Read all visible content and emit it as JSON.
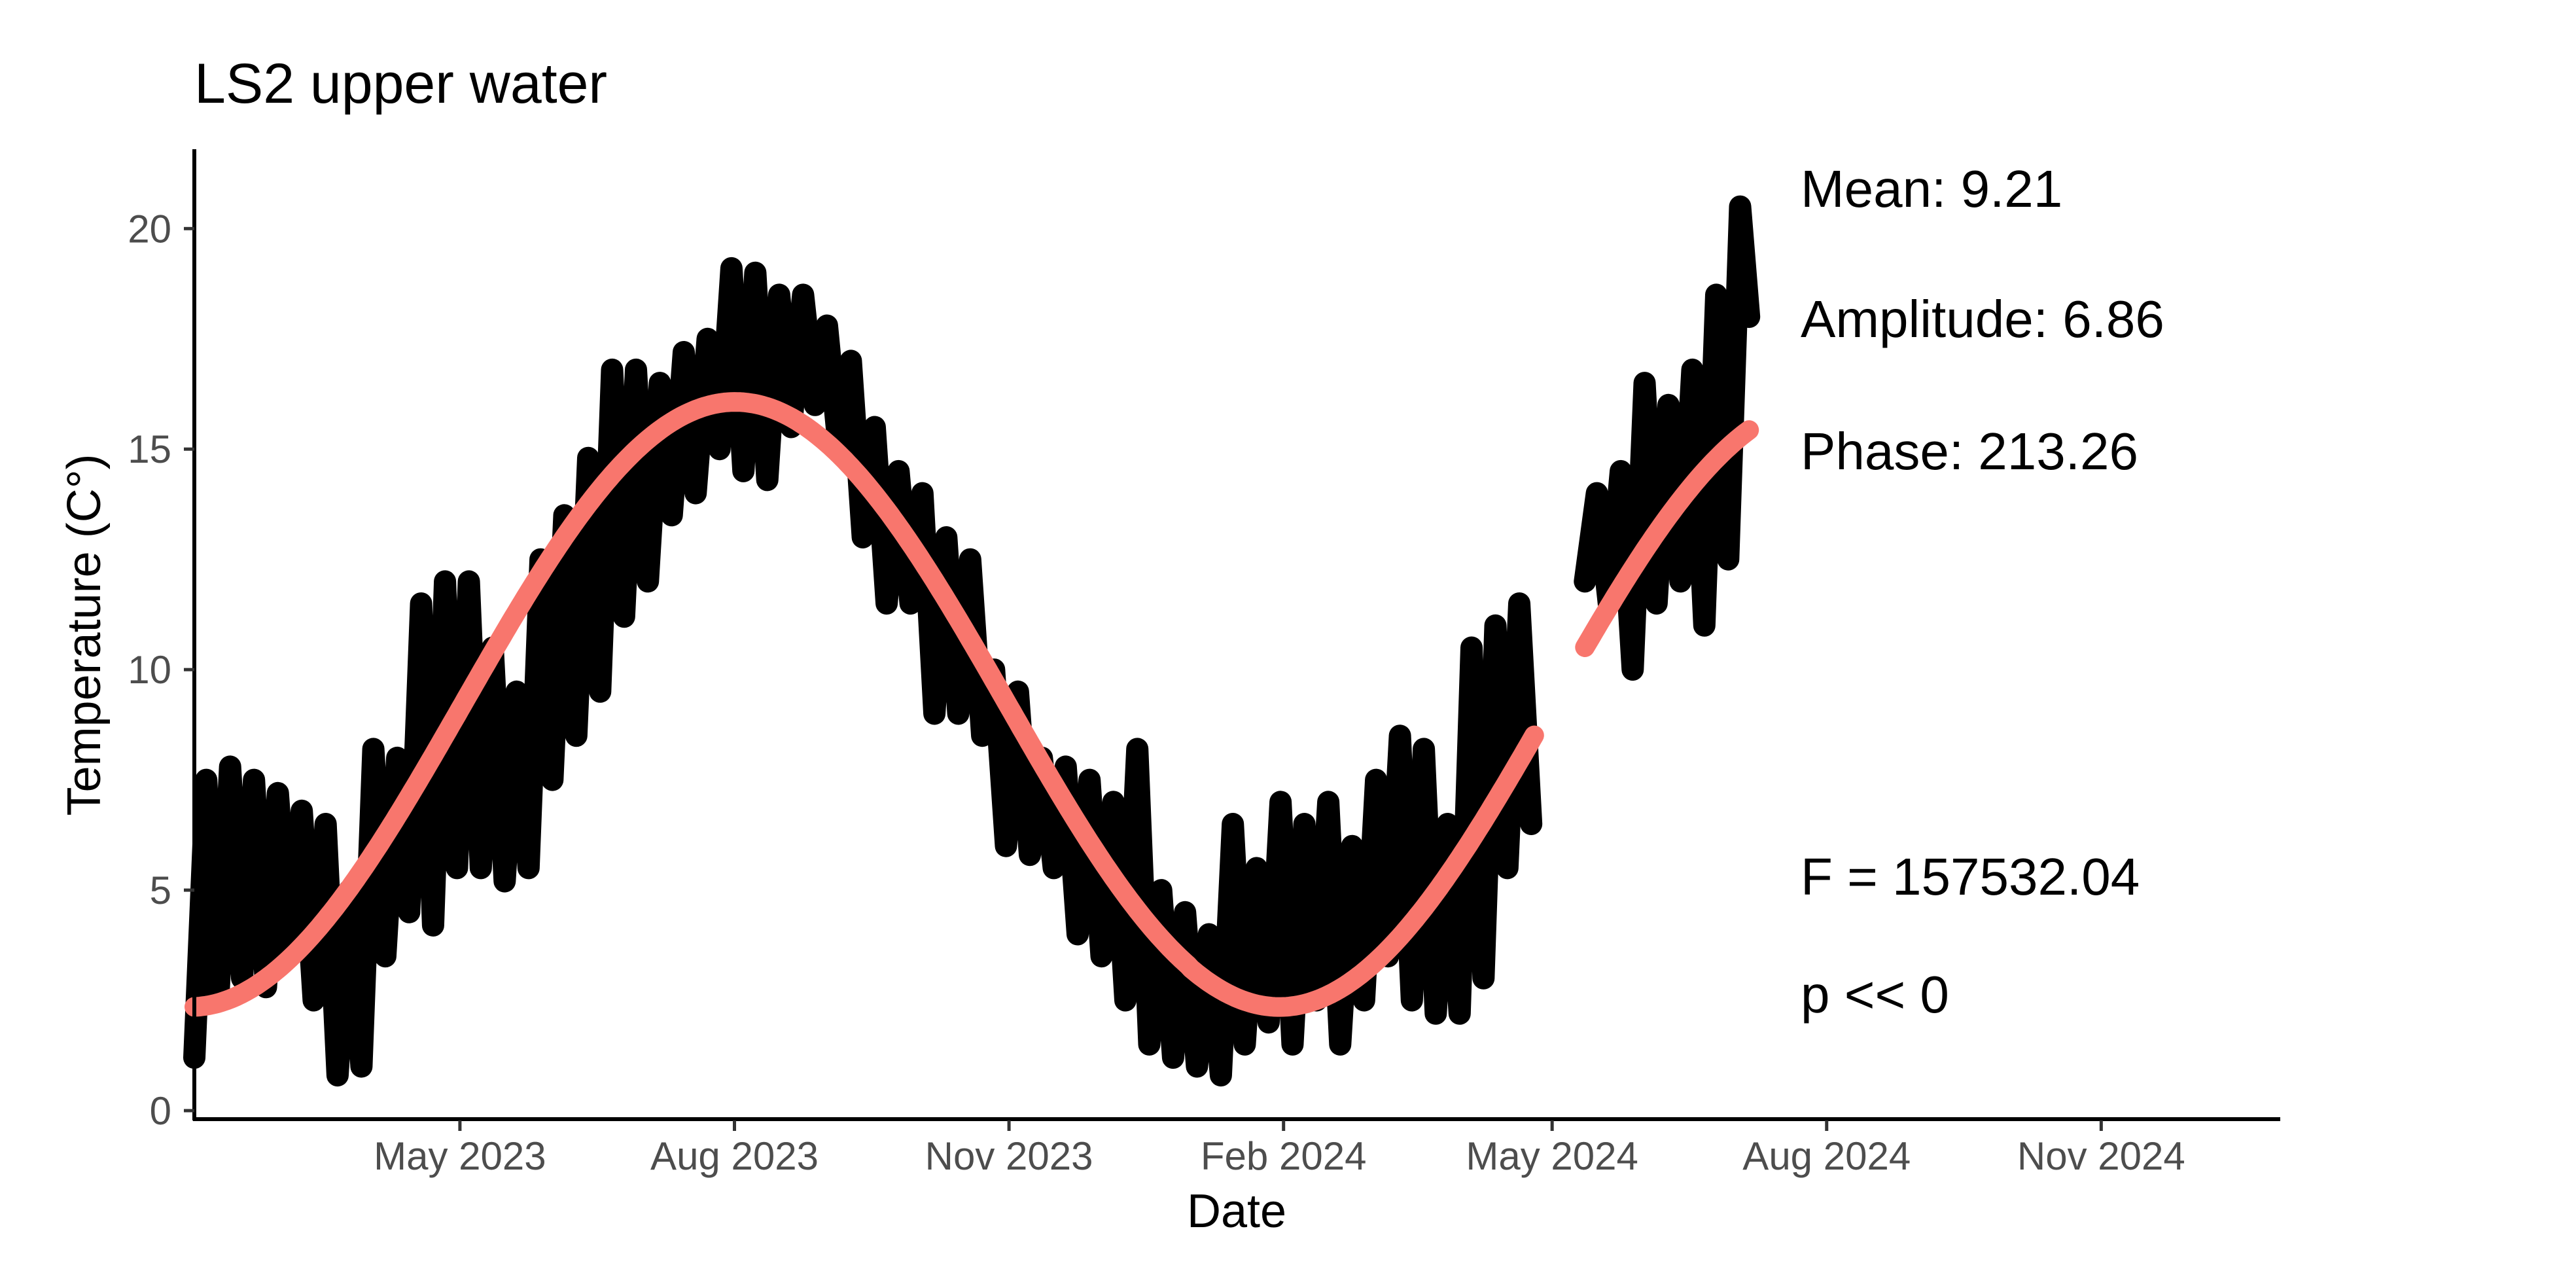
{
  "chart_data": {
    "type": "line",
    "title": "LS2 upper water",
    "xlabel": "Date",
    "ylabel": "Temperature (C°)",
    "xlim": [
      "2023-02-01",
      "2024-12-31"
    ],
    "ylim": [
      0,
      21.8
    ],
    "x_ticks": [
      {
        "date": "2023-05-01",
        "label": "May 2023"
      },
      {
        "date": "2023-08-01",
        "label": "Aug 2023"
      },
      {
        "date": "2023-11-01",
        "label": "Nov 2023"
      },
      {
        "date": "2024-02-01",
        "label": "Feb 2024"
      },
      {
        "date": "2024-05-01",
        "label": "May 2024"
      },
      {
        "date": "2024-08-01",
        "label": "Aug 2024"
      },
      {
        "date": "2024-11-01",
        "label": "Nov 2024"
      }
    ],
    "y_ticks": [
      {
        "value": 0,
        "label": "0"
      },
      {
        "value": 5,
        "label": "5"
      },
      {
        "value": 10,
        "label": "10"
      },
      {
        "value": 15,
        "label": "15"
      },
      {
        "value": 20,
        "label": "20"
      }
    ],
    "grid": false,
    "colors": {
      "observed": "#000000",
      "fit": "#f8766d"
    },
    "series": [
      {
        "segments": [
          [
            [
              "2023-02-01",
              1.2
            ],
            [
              "2023-02-05",
              7.5
            ],
            [
              "2023-02-09",
              2.5
            ],
            [
              "2023-02-13",
              7.8
            ],
            [
              "2023-02-17",
              3.0
            ],
            [
              "2023-02-21",
              7.5
            ],
            [
              "2023-02-25",
              2.8
            ],
            [
              "2023-03-01",
              7.2
            ],
            [
              "2023-03-05",
              3.5
            ],
            [
              "2023-03-09",
              6.8
            ],
            [
              "2023-03-13",
              2.5
            ],
            [
              "2023-03-17",
              6.5
            ],
            [
              "2023-03-21",
              0.8
            ],
            [
              "2023-03-25",
              5.0
            ],
            [
              "2023-03-29",
              1.0
            ],
            [
              "2023-04-02",
              8.2
            ],
            [
              "2023-04-06",
              3.5
            ],
            [
              "2023-04-10",
              8.0
            ],
            [
              "2023-04-14",
              4.5
            ],
            [
              "2023-04-18",
              11.5
            ],
            [
              "2023-04-22",
              4.2
            ],
            [
              "2023-04-26",
              12.0
            ],
            [
              "2023-04-30",
              5.5
            ],
            [
              "2023-05-04",
              12.0
            ],
            [
              "2023-05-08",
              5.5
            ],
            [
              "2023-05-12",
              10.5
            ],
            [
              "2023-05-16",
              5.2
            ],
            [
              "2023-05-20",
              9.5
            ],
            [
              "2023-05-24",
              5.5
            ],
            [
              "2023-05-28",
              12.5
            ],
            [
              "2023-06-01",
              7.5
            ],
            [
              "2023-06-05",
              13.5
            ],
            [
              "2023-06-09",
              8.5
            ],
            [
              "2023-06-13",
              14.8
            ],
            [
              "2023-06-17",
              9.5
            ],
            [
              "2023-06-21",
              16.8
            ],
            [
              "2023-06-25",
              11.2
            ],
            [
              "2023-06-29",
              16.8
            ],
            [
              "2023-07-03",
              12.0
            ],
            [
              "2023-07-07",
              16.5
            ],
            [
              "2023-07-11",
              13.5
            ],
            [
              "2023-07-15",
              17.2
            ],
            [
              "2023-07-19",
              14.0
            ],
            [
              "2023-07-23",
              17.5
            ],
            [
              "2023-07-27",
              15.0
            ],
            [
              "2023-07-31",
              19.1
            ],
            [
              "2023-08-04",
              14.5
            ],
            [
              "2023-08-08",
              19.0
            ],
            [
              "2023-08-12",
              14.3
            ],
            [
              "2023-08-16",
              18.5
            ],
            [
              "2023-08-20",
              15.5
            ],
            [
              "2023-08-24",
              18.5
            ],
            [
              "2023-08-28",
              16.0
            ],
            [
              "2023-09-01",
              17.8
            ],
            [
              "2023-09-05",
              15.0
            ],
            [
              "2023-09-09",
              17.0
            ],
            [
              "2023-09-13",
              13.0
            ],
            [
              "2023-09-17",
              15.5
            ],
            [
              "2023-09-21",
              11.5
            ],
            [
              "2023-09-25",
              14.5
            ],
            [
              "2023-09-29",
              11.5
            ],
            [
              "2023-10-03",
              14.0
            ],
            [
              "2023-10-07",
              9.0
            ],
            [
              "2023-10-11",
              13.0
            ],
            [
              "2023-10-15",
              9.0
            ],
            [
              "2023-10-19",
              12.5
            ],
            [
              "2023-10-23",
              8.5
            ],
            [
              "2023-10-27",
              10.0
            ],
            [
              "2023-10-31",
              6.0
            ],
            [
              "2023-11-04",
              9.5
            ],
            [
              "2023-11-08",
              5.8
            ],
            [
              "2023-11-12",
              8.0
            ],
            [
              "2023-11-16",
              5.5
            ],
            [
              "2023-11-20",
              7.8
            ],
            [
              "2023-11-24",
              4.0
            ],
            [
              "2023-11-28",
              7.5
            ],
            [
              "2023-12-02",
              3.5
            ],
            [
              "2023-12-06",
              7.0
            ],
            [
              "2023-12-10",
              2.5
            ],
            [
              "2023-12-14",
              8.2
            ],
            [
              "2023-12-18",
              1.5
            ],
            [
              "2023-12-22",
              5.0
            ],
            [
              "2023-12-26",
              1.2
            ],
            [
              "2023-12-30",
              4.5
            ],
            [
              "2024-01-03",
              1.0
            ],
            [
              "2024-01-07",
              4.0
            ],
            [
              "2024-01-11",
              0.8
            ],
            [
              "2024-01-15",
              6.5
            ],
            [
              "2024-01-19",
              1.5
            ],
            [
              "2024-01-23",
              5.5
            ],
            [
              "2024-01-27",
              2.0
            ],
            [
              "2024-01-31",
              7.0
            ],
            [
              "2024-02-04",
              1.5
            ],
            [
              "2024-02-08",
              6.5
            ],
            [
              "2024-02-12",
              2.5
            ],
            [
              "2024-02-16",
              7.0
            ],
            [
              "2024-02-20",
              1.5
            ],
            [
              "2024-02-24",
              6.0
            ],
            [
              "2024-02-28",
              2.5
            ],
            [
              "2024-03-03",
              7.5
            ],
            [
              "2024-03-07",
              3.5
            ],
            [
              "2024-03-11",
              8.5
            ],
            [
              "2024-03-15",
              2.5
            ],
            [
              "2024-03-19",
              8.2
            ],
            [
              "2024-03-23",
              2.2
            ],
            [
              "2024-03-27",
              6.5
            ],
            [
              "2024-03-31",
              2.2
            ],
            [
              "2024-04-04",
              10.5
            ],
            [
              "2024-04-08",
              3.0
            ],
            [
              "2024-04-12",
              11.0
            ],
            [
              "2024-04-16",
              5.5
            ],
            [
              "2024-04-20",
              11.5
            ],
            [
              "2024-04-24",
              6.5
            ]
          ],
          [
            [
              "2024-05-12",
              12.0
            ],
            [
              "2024-05-16",
              14.0
            ],
            [
              "2024-05-20",
              11.5
            ],
            [
              "2024-05-24",
              14.5
            ],
            [
              "2024-05-28",
              10.0
            ],
            [
              "2024-06-01",
              16.5
            ],
            [
              "2024-06-05",
              11.5
            ],
            [
              "2024-06-09",
              16.0
            ],
            [
              "2024-06-13",
              12.0
            ],
            [
              "2024-06-17",
              16.8
            ],
            [
              "2024-06-21",
              11.0
            ],
            [
              "2024-06-25",
              18.5
            ],
            [
              "2024-06-29",
              12.5
            ],
            [
              "2024-07-03",
              20.5
            ],
            [
              "2024-07-06",
              18.0
            ]
          ]
        ]
      },
      {
        "fit": {
          "mean": 9.21,
          "amplitude": 6.86,
          "phase_day_of_year": 213.26,
          "ranges": [
            [
              "2023-02-01",
              "2024-04-25"
            ],
            [
              "2024-05-12",
              "2024-07-06"
            ]
          ]
        }
      }
    ],
    "annotations": [
      {
        "text": "Mean: 9.21",
        "position": "top-right"
      },
      {
        "text": "Amplitude: 6.86",
        "position": "top-right"
      },
      {
        "text": "Phase: 213.26",
        "position": "top-right"
      },
      {
        "text": "F =  157532.04",
        "position": "bottom-right"
      },
      {
        "text": "p <<  0",
        "position": "bottom-right"
      }
    ]
  }
}
